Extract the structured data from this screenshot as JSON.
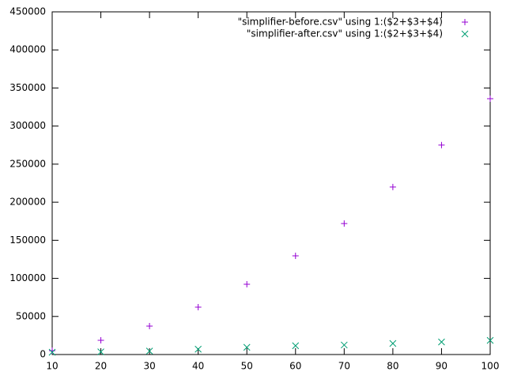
{
  "chart_data": {
    "type": "scatter",
    "series": [
      {
        "name": "\"simplifier-before.csv\" using 1:($2+$3+$4)",
        "color": "#9400d3",
        "marker": "plus",
        "x": [
          10,
          20,
          30,
          40,
          50,
          60,
          70,
          80,
          90,
          100
        ],
        "values": [
          5000,
          18700,
          37300,
          62200,
          92300,
          129600,
          172000,
          220000,
          275000,
          336000
        ]
      },
      {
        "name": "\"simplifier-after.csv\" using 1:($2+$3+$4)",
        "color": "#009e73",
        "marker": "cross",
        "x": [
          10,
          20,
          30,
          40,
          50,
          60,
          70,
          80,
          90,
          100
        ],
        "values": [
          3000,
          3500,
          4500,
          7000,
          9500,
          11500,
          12500,
          14500,
          16500,
          18500
        ]
      }
    ],
    "xlim": [
      10,
      100
    ],
    "xticks": [
      10,
      20,
      30,
      40,
      50,
      60,
      70,
      80,
      90,
      100
    ],
    "ylim": [
      0,
      450000
    ],
    "yticks": [
      0,
      50000,
      100000,
      150000,
      200000,
      250000,
      300000,
      350000,
      400000,
      450000
    ],
    "grid": false,
    "legend": "top-right"
  }
}
